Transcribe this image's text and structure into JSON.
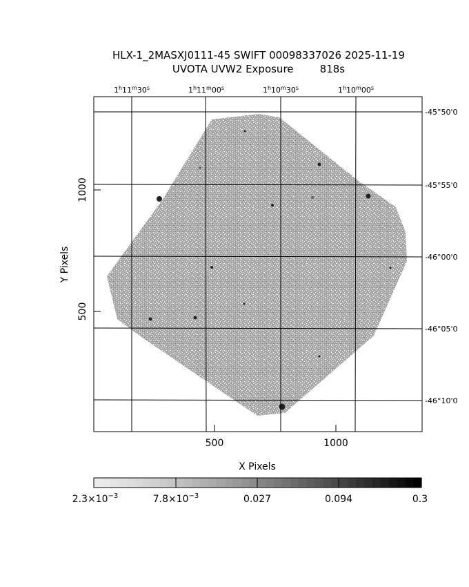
{
  "title": {
    "line1": "HLX-1_2MASXJ0111-45 SWIFT 00098337026 2025-11-19",
    "line2": "UVOTA UVW2 Exposure        818s"
  },
  "axes": {
    "xlabel": "X Pixels",
    "ylabel": "Y Pixels",
    "x_ticks": [
      "500",
      "1000"
    ],
    "y_ticks": [
      "500",
      "1000"
    ],
    "ra_ticks": [
      {
        "h": "1",
        "m": "11",
        "s": "30"
      },
      {
        "h": "1",
        "m": "11",
        "s": "00"
      },
      {
        "h": "1",
        "m": "10",
        "s": "30"
      },
      {
        "h": "1",
        "m": "10",
        "s": "00"
      }
    ],
    "dec_ticks": [
      "-45°50'0",
      "-45°55'0",
      "-46°00'0",
      "-46°05'0",
      "-46°10'0"
    ]
  },
  "colorbar": {
    "labels": [
      {
        "mant": "2.3×10",
        "exp": "−3"
      },
      {
        "mant": "7.8×10",
        "exp": "−3"
      },
      {
        "mant": "0.027",
        "exp": ""
      },
      {
        "mant": "0.094",
        "exp": ""
      },
      {
        "mant": "0.3",
        "exp": ""
      }
    ]
  }
}
